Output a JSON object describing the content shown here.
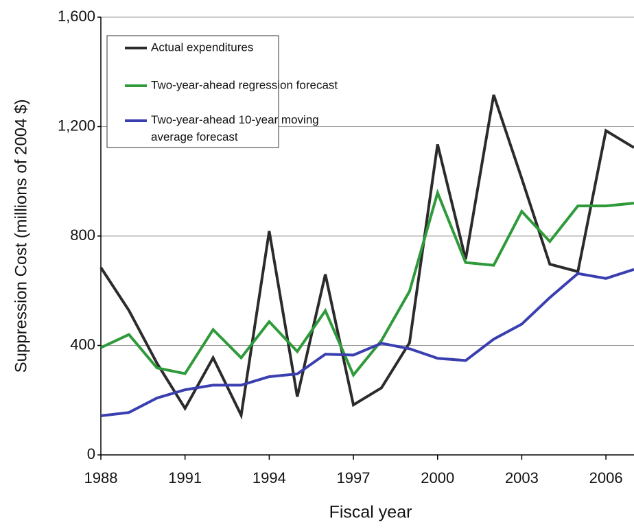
{
  "chart_data": {
    "type": "line",
    "x_label": "Fiscal year",
    "y_label": "Suppression Cost (millions of 2004 $)",
    "x": [
      1988,
      1989,
      1990,
      1991,
      1992,
      1993,
      1994,
      1995,
      1996,
      1997,
      1998,
      1999,
      2000,
      2001,
      2002,
      2003,
      2004,
      2005,
      2006,
      2007
    ],
    "series": [
      {
        "name": "Actual expenditures",
        "color": "#2b2b2b",
        "values": [
          685,
          528,
          335,
          170,
          355,
          145,
          818,
          213,
          660,
          183,
          245,
          410,
          1135,
          715,
          1316,
          1010,
          697,
          670,
          1185,
          1123
        ]
      },
      {
        "name": "Two-year-ahead regression forecast",
        "color": "#2e9a3a",
        "values": [
          392,
          440,
          318,
          297,
          458,
          355,
          487,
          378,
          527,
          292,
          418,
          598,
          958,
          703,
          693,
          890,
          780,
          910,
          910,
          920
        ]
      },
      {
        "name": "Two-year-ahead 10-year moving average forecast",
        "color": "#3a3fb0",
        "values": [
          143,
          155,
          208,
          238,
          255,
          255,
          286,
          296,
          368,
          365,
          408,
          388,
          353,
          345,
          423,
          478,
          575,
          663,
          645,
          678
        ]
      }
    ],
    "xlim": [
      1988,
      2007
    ],
    "xticks": [
      1988,
      1991,
      1994,
      1997,
      2000,
      2003,
      2006
    ],
    "ylim": [
      0,
      1600
    ],
    "yticks": [
      0,
      400,
      800,
      {
        "value": 1200,
        "label": "1,200"
      },
      {
        "value": 1600,
        "label": "1,600"
      }
    ],
    "grid": true,
    "legend": "upper-left"
  }
}
